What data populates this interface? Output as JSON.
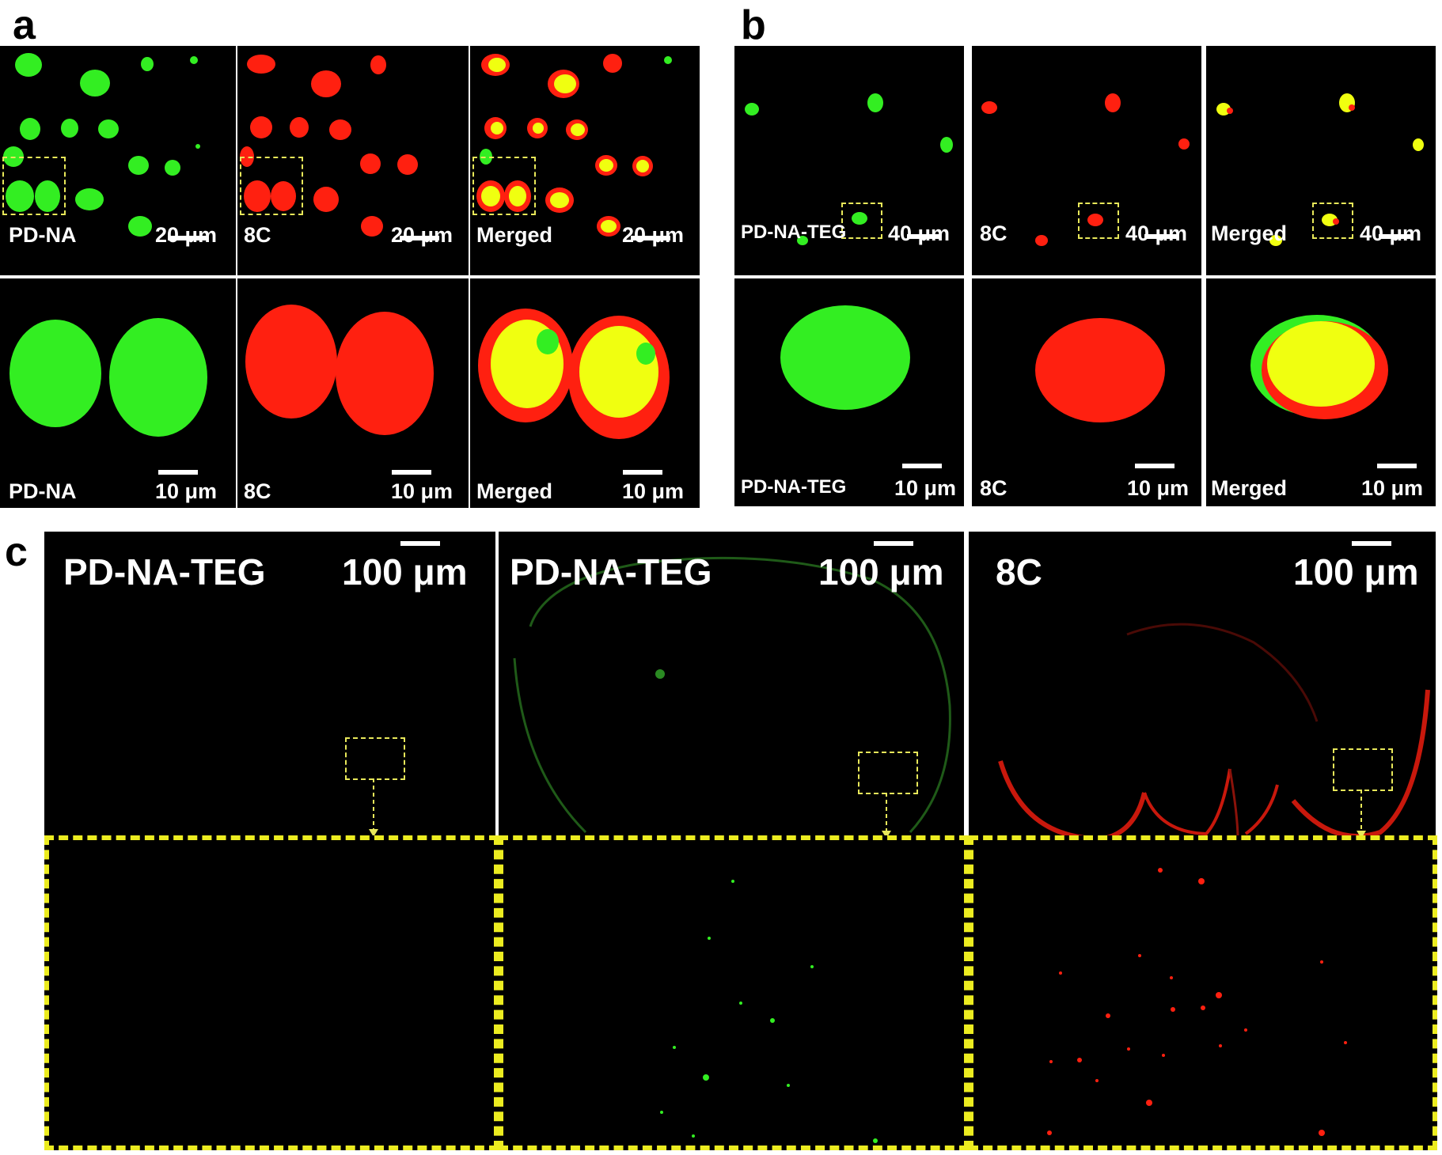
{
  "figure": {
    "panel_labels": {
      "a": "a",
      "b": "b",
      "c": "c"
    },
    "colors": {
      "green": "#33ee22",
      "red": "#ff2010",
      "yellow": "#f0ff10",
      "box": "#e8e85a",
      "inset_border": "#ecec20"
    },
    "a": {
      "top": [
        {
          "channel": "PD-NA",
          "scale": "20 μm",
          "color": "green"
        },
        {
          "channel": "8C",
          "scale": "20 μm",
          "color": "red"
        },
        {
          "channel": "Merged",
          "scale": "20 μm",
          "color": "merged"
        }
      ],
      "bottom": [
        {
          "channel": "PD-NA",
          "scale": "10 μm",
          "color": "green"
        },
        {
          "channel": "8C",
          "scale": "10 μm",
          "color": "red"
        },
        {
          "channel": "Merged",
          "scale": "10 μm",
          "color": "merged"
        }
      ]
    },
    "b": {
      "top": [
        {
          "channel": "PD-NA-TEG",
          "scale": "40 μm",
          "color": "green"
        },
        {
          "channel": "8C",
          "scale": "40 μm",
          "color": "red"
        },
        {
          "channel": "Merged",
          "scale": "40 μm",
          "color": "merged"
        }
      ],
      "bottom": [
        {
          "channel": "PD-NA-TEG",
          "scale": "10 μm",
          "color": "green"
        },
        {
          "channel": "8C",
          "scale": "10 μm",
          "color": "red"
        },
        {
          "channel": "Merged",
          "scale": "10 μm",
          "color": "merged"
        }
      ]
    },
    "c": [
      {
        "channel": "PD-NA-TEG",
        "scale": "100 μm",
        "color": "none"
      },
      {
        "channel": "PD-NA-TEG",
        "scale": "100 μm",
        "color": "green"
      },
      {
        "channel": "8C",
        "scale": "100 μm",
        "color": "red"
      }
    ]
  }
}
